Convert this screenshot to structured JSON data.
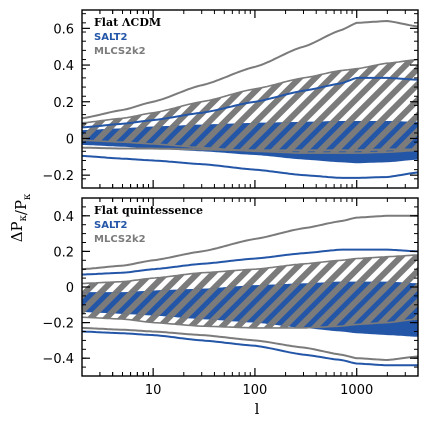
{
  "colors": {
    "salt2": "#2456a8",
    "mlcs2k2": "#7b7b7b",
    "hatch_bg": "#ffffff",
    "axis": "#000000"
  },
  "chart_data": [
    {
      "type": "area",
      "panel": "top",
      "x_scale": "log",
      "xlim": [
        2,
        4000
      ],
      "ylim": [
        -0.27,
        0.7
      ],
      "xticks": [
        10,
        100,
        1000
      ],
      "yticks": [
        -0.2,
        0,
        0.2,
        0.4,
        0.6
      ],
      "ytick_labels": [
        "−0.2",
        "0",
        "0.2",
        "0.4",
        "0.6"
      ],
      "legend": {
        "title": "Flat ΛCDM",
        "entries": [
          "SALT2",
          "MLCS2k2"
        ],
        "placement": "top-left"
      },
      "x": [
        2,
        5,
        10,
        30,
        100,
        300,
        700,
        1000,
        2000,
        4000
      ],
      "series": [
        {
          "name": "SALT2",
          "role": "inner-band",
          "upper": [
            0.045,
            0.055,
            0.065,
            0.075,
            0.085,
            0.09,
            0.095,
            0.095,
            0.095,
            0.09
          ],
          "lower": [
            -0.035,
            -0.045,
            -0.055,
            -0.07,
            -0.09,
            -0.115,
            -0.13,
            -0.135,
            -0.13,
            -0.115
          ]
        },
        {
          "name": "MLCS2k2",
          "role": "inner-band",
          "upper": [
            0.085,
            0.11,
            0.14,
            0.2,
            0.27,
            0.33,
            0.37,
            0.38,
            0.41,
            0.43
          ],
          "lower": [
            -0.01,
            -0.02,
            -0.03,
            -0.05,
            -0.07,
            -0.08,
            -0.08,
            -0.08,
            -0.075,
            -0.065
          ]
        },
        {
          "name": "SALT2",
          "role": "outer-lines",
          "upper": [
            0.06,
            0.08,
            0.1,
            0.14,
            0.2,
            0.26,
            0.3,
            0.33,
            0.33,
            0.32
          ],
          "lower": [
            -0.095,
            -0.11,
            -0.12,
            -0.14,
            -0.17,
            -0.2,
            -0.215,
            -0.215,
            -0.21,
            -0.185
          ]
        },
        {
          "name": "MLCS2k2",
          "role": "outer-lines",
          "upper": [
            0.11,
            0.155,
            0.2,
            0.29,
            0.39,
            0.5,
            0.59,
            0.63,
            0.64,
            0.61
          ],
          "lower": [
            -0.05,
            -0.055,
            -0.055,
            -0.06,
            -0.065,
            -0.065,
            -0.065,
            -0.065,
            -0.06,
            -0.06
          ]
        }
      ]
    },
    {
      "type": "area",
      "panel": "bottom",
      "x_scale": "log",
      "xlim": [
        2,
        4000
      ],
      "ylim": [
        -0.5,
        0.5
      ],
      "xticks": [
        10,
        100,
        1000
      ],
      "xtick_labels": [
        "10",
        "100",
        "1000"
      ],
      "yticks": [
        -0.4,
        -0.2,
        0,
        0.2,
        0.4
      ],
      "ytick_labels": [
        "−0.4",
        "−0.2",
        "0",
        "0.2",
        "0.4"
      ],
      "legend": {
        "title": "Flat quintessence",
        "entries": [
          "SALT2",
          "MLCS2k2"
        ],
        "placement": "top-left"
      },
      "x": [
        2,
        5,
        10,
        30,
        100,
        300,
        700,
        1000,
        2000,
        4000
      ],
      "series": [
        {
          "name": "SALT2",
          "role": "inner-band",
          "upper": [
            -0.03,
            -0.03,
            -0.02,
            -0.01,
            0.01,
            0.02,
            0.03,
            0.03,
            0.03,
            0.02
          ],
          "lower": [
            -0.14,
            -0.15,
            -0.16,
            -0.18,
            -0.2,
            -0.23,
            -0.25,
            -0.26,
            -0.27,
            -0.28
          ]
        },
        {
          "name": "MLCS2k2",
          "role": "inner-band",
          "upper": [
            0.02,
            0.03,
            0.05,
            0.08,
            0.1,
            0.13,
            0.15,
            0.16,
            0.17,
            0.18
          ],
          "lower": [
            -0.17,
            -0.18,
            -0.2,
            -0.22,
            -0.23,
            -0.23,
            -0.22,
            -0.21,
            -0.2,
            -0.18
          ]
        },
        {
          "name": "SALT2",
          "role": "outer-lines",
          "upper": [
            0.07,
            0.08,
            0.1,
            0.13,
            0.16,
            0.19,
            0.21,
            0.21,
            0.21,
            0.2
          ],
          "lower": [
            -0.25,
            -0.26,
            -0.27,
            -0.3,
            -0.33,
            -0.38,
            -0.41,
            -0.43,
            -0.44,
            -0.44
          ]
        },
        {
          "name": "MLCS2k2",
          "role": "outer-lines",
          "upper": [
            0.1,
            0.12,
            0.15,
            0.2,
            0.27,
            0.33,
            0.37,
            0.39,
            0.4,
            0.4
          ],
          "lower": [
            -0.23,
            -0.24,
            -0.25,
            -0.27,
            -0.3,
            -0.34,
            -0.38,
            -0.4,
            -0.41,
            -0.39
          ]
        }
      ]
    }
  ],
  "axes": {
    "xlabel": "l",
    "ylabel": "ΔP_κ/P_κ"
  }
}
